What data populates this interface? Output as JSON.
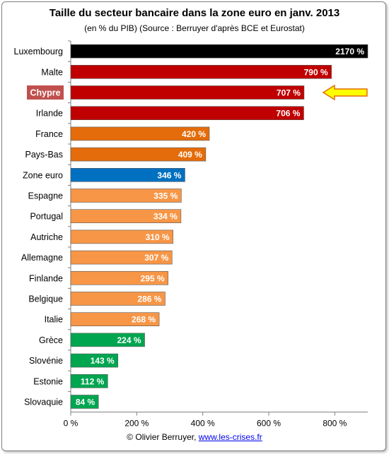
{
  "chart_data": {
    "type": "bar",
    "orientation": "horizontal",
    "title": "Taille du secteur bancaire dans la zone euro en janv. 2013",
    "subtitle": "(en % du PIB) (Source : Berruyer d'après BCE et Eurostat)",
    "categories": [
      "Luxembourg",
      "Malte",
      "Chypre",
      "Irlande",
      "France",
      "Pays-Bas",
      "Zone euro",
      "Espagne",
      "Portugal",
      "Autriche",
      "Allemagne",
      "Finlande",
      "Belgique",
      "Italie",
      "Grèce",
      "Slovénie",
      "Estonie",
      "Slovaquie"
    ],
    "values": [
      2170,
      790,
      707,
      706,
      420,
      409,
      346,
      335,
      334,
      310,
      307,
      295,
      286,
      268,
      224,
      143,
      112,
      84
    ],
    "value_labels": [
      "2170 %",
      "790 %",
      "707 %",
      "706 %",
      "420 %",
      "409 %",
      "346 %",
      "335 %",
      "334 %",
      "310 %",
      "307 %",
      "295 %",
      "286 %",
      "268 %",
      "224 %",
      "143 %",
      "112 %",
      "84 %"
    ],
    "bar_colors": [
      "#000000",
      "#c00000",
      "#c00000",
      "#c00000",
      "#e46c0a",
      "#e46c0a",
      "#0070c0",
      "#f79646",
      "#f79646",
      "#f79646",
      "#f79646",
      "#f79646",
      "#f79646",
      "#f79646",
      "#00a550",
      "#00a550",
      "#00a550",
      "#00a550"
    ],
    "xlim": [
      0,
      900
    ],
    "xticks": [
      0,
      200,
      400,
      600,
      800
    ],
    "xtick_labels": [
      "0 %",
      "200 %",
      "400 %",
      "600 %",
      "800 %"
    ],
    "bar_truncated": "Luxembourg",
    "highlighted_category": "Chypre",
    "highlight_color": "#c0504d",
    "arrow_fill": "#ffff00",
    "arrow_stroke": "#e46c0a",
    "grid": false
  },
  "credit": {
    "prefix": "© Olivier Berruyer, ",
    "link": "www.les-crises.fr"
  }
}
